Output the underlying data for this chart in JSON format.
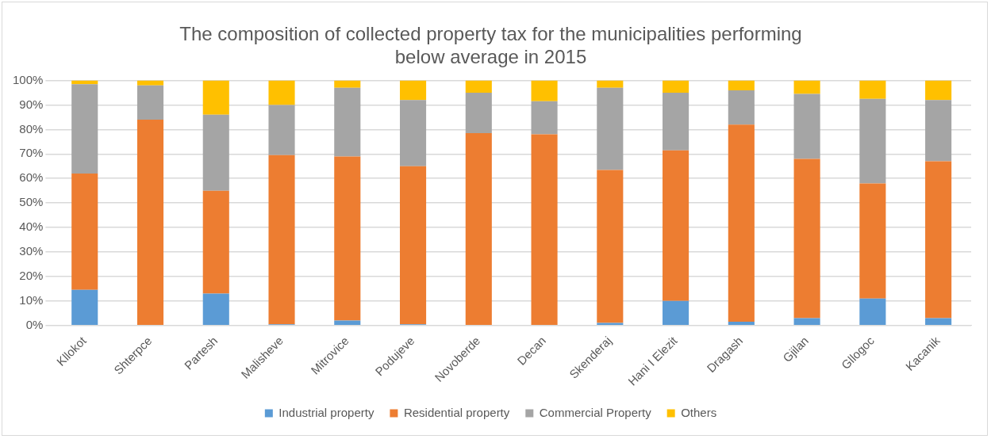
{
  "chart_data": {
    "type": "bar",
    "title": [
      "The composition of collected property tax for the municipalities performing",
      "below average in 2015"
    ],
    "categories": [
      "Kllokot",
      "Shterpce",
      "Partesh",
      "Malisheve",
      "Mitrovice",
      "Podujeve",
      "Novoberde",
      "Decan",
      "Skenderaj",
      "Hani I Elezit",
      "Dragash",
      "Gjilan",
      "Gllogoc",
      "Kacanik"
    ],
    "series": [
      {
        "name": "Industrial property",
        "color": "#5b9bd5",
        "values": [
          14.5,
          0,
          13,
          0.5,
          2,
          0.5,
          0,
          0,
          1,
          10,
          1.5,
          3,
          11,
          3
        ]
      },
      {
        "name": "Residential property",
        "color": "#ed7d31",
        "values": [
          47.5,
          84,
          42,
          69,
          67,
          64.5,
          78.5,
          78,
          62.5,
          61.5,
          80.5,
          65,
          47,
          64
        ]
      },
      {
        "name": "Commercial Property",
        "color": "#a5a5a5",
        "values": [
          36.5,
          14,
          31,
          20.5,
          28,
          27,
          16.5,
          13.5,
          33.5,
          23.5,
          14,
          26.5,
          34.5,
          25
        ]
      },
      {
        "name": "Others",
        "color": "#ffc000",
        "values": [
          1.5,
          2,
          14,
          10,
          3,
          8,
          5,
          8.5,
          3,
          5,
          4,
          5.5,
          7.5,
          8
        ]
      }
    ],
    "stacked": true,
    "ylim": [
      0,
      100
    ],
    "yticks": [
      {
        "value": 0,
        "label": "0%"
      },
      {
        "value": 10,
        "label": "10%"
      },
      {
        "value": 20,
        "label": "20%"
      },
      {
        "value": 30,
        "label": "30%"
      },
      {
        "value": 40,
        "label": "40%"
      },
      {
        "value": 50,
        "label": "50%"
      },
      {
        "value": 60,
        "label": "60%"
      },
      {
        "value": 70,
        "label": "70%"
      },
      {
        "value": 80,
        "label": "80%"
      },
      {
        "value": 90,
        "label": "90%"
      },
      {
        "value": 100,
        "label": "100%"
      }
    ],
    "grid": "y",
    "legend": "bottom"
  }
}
